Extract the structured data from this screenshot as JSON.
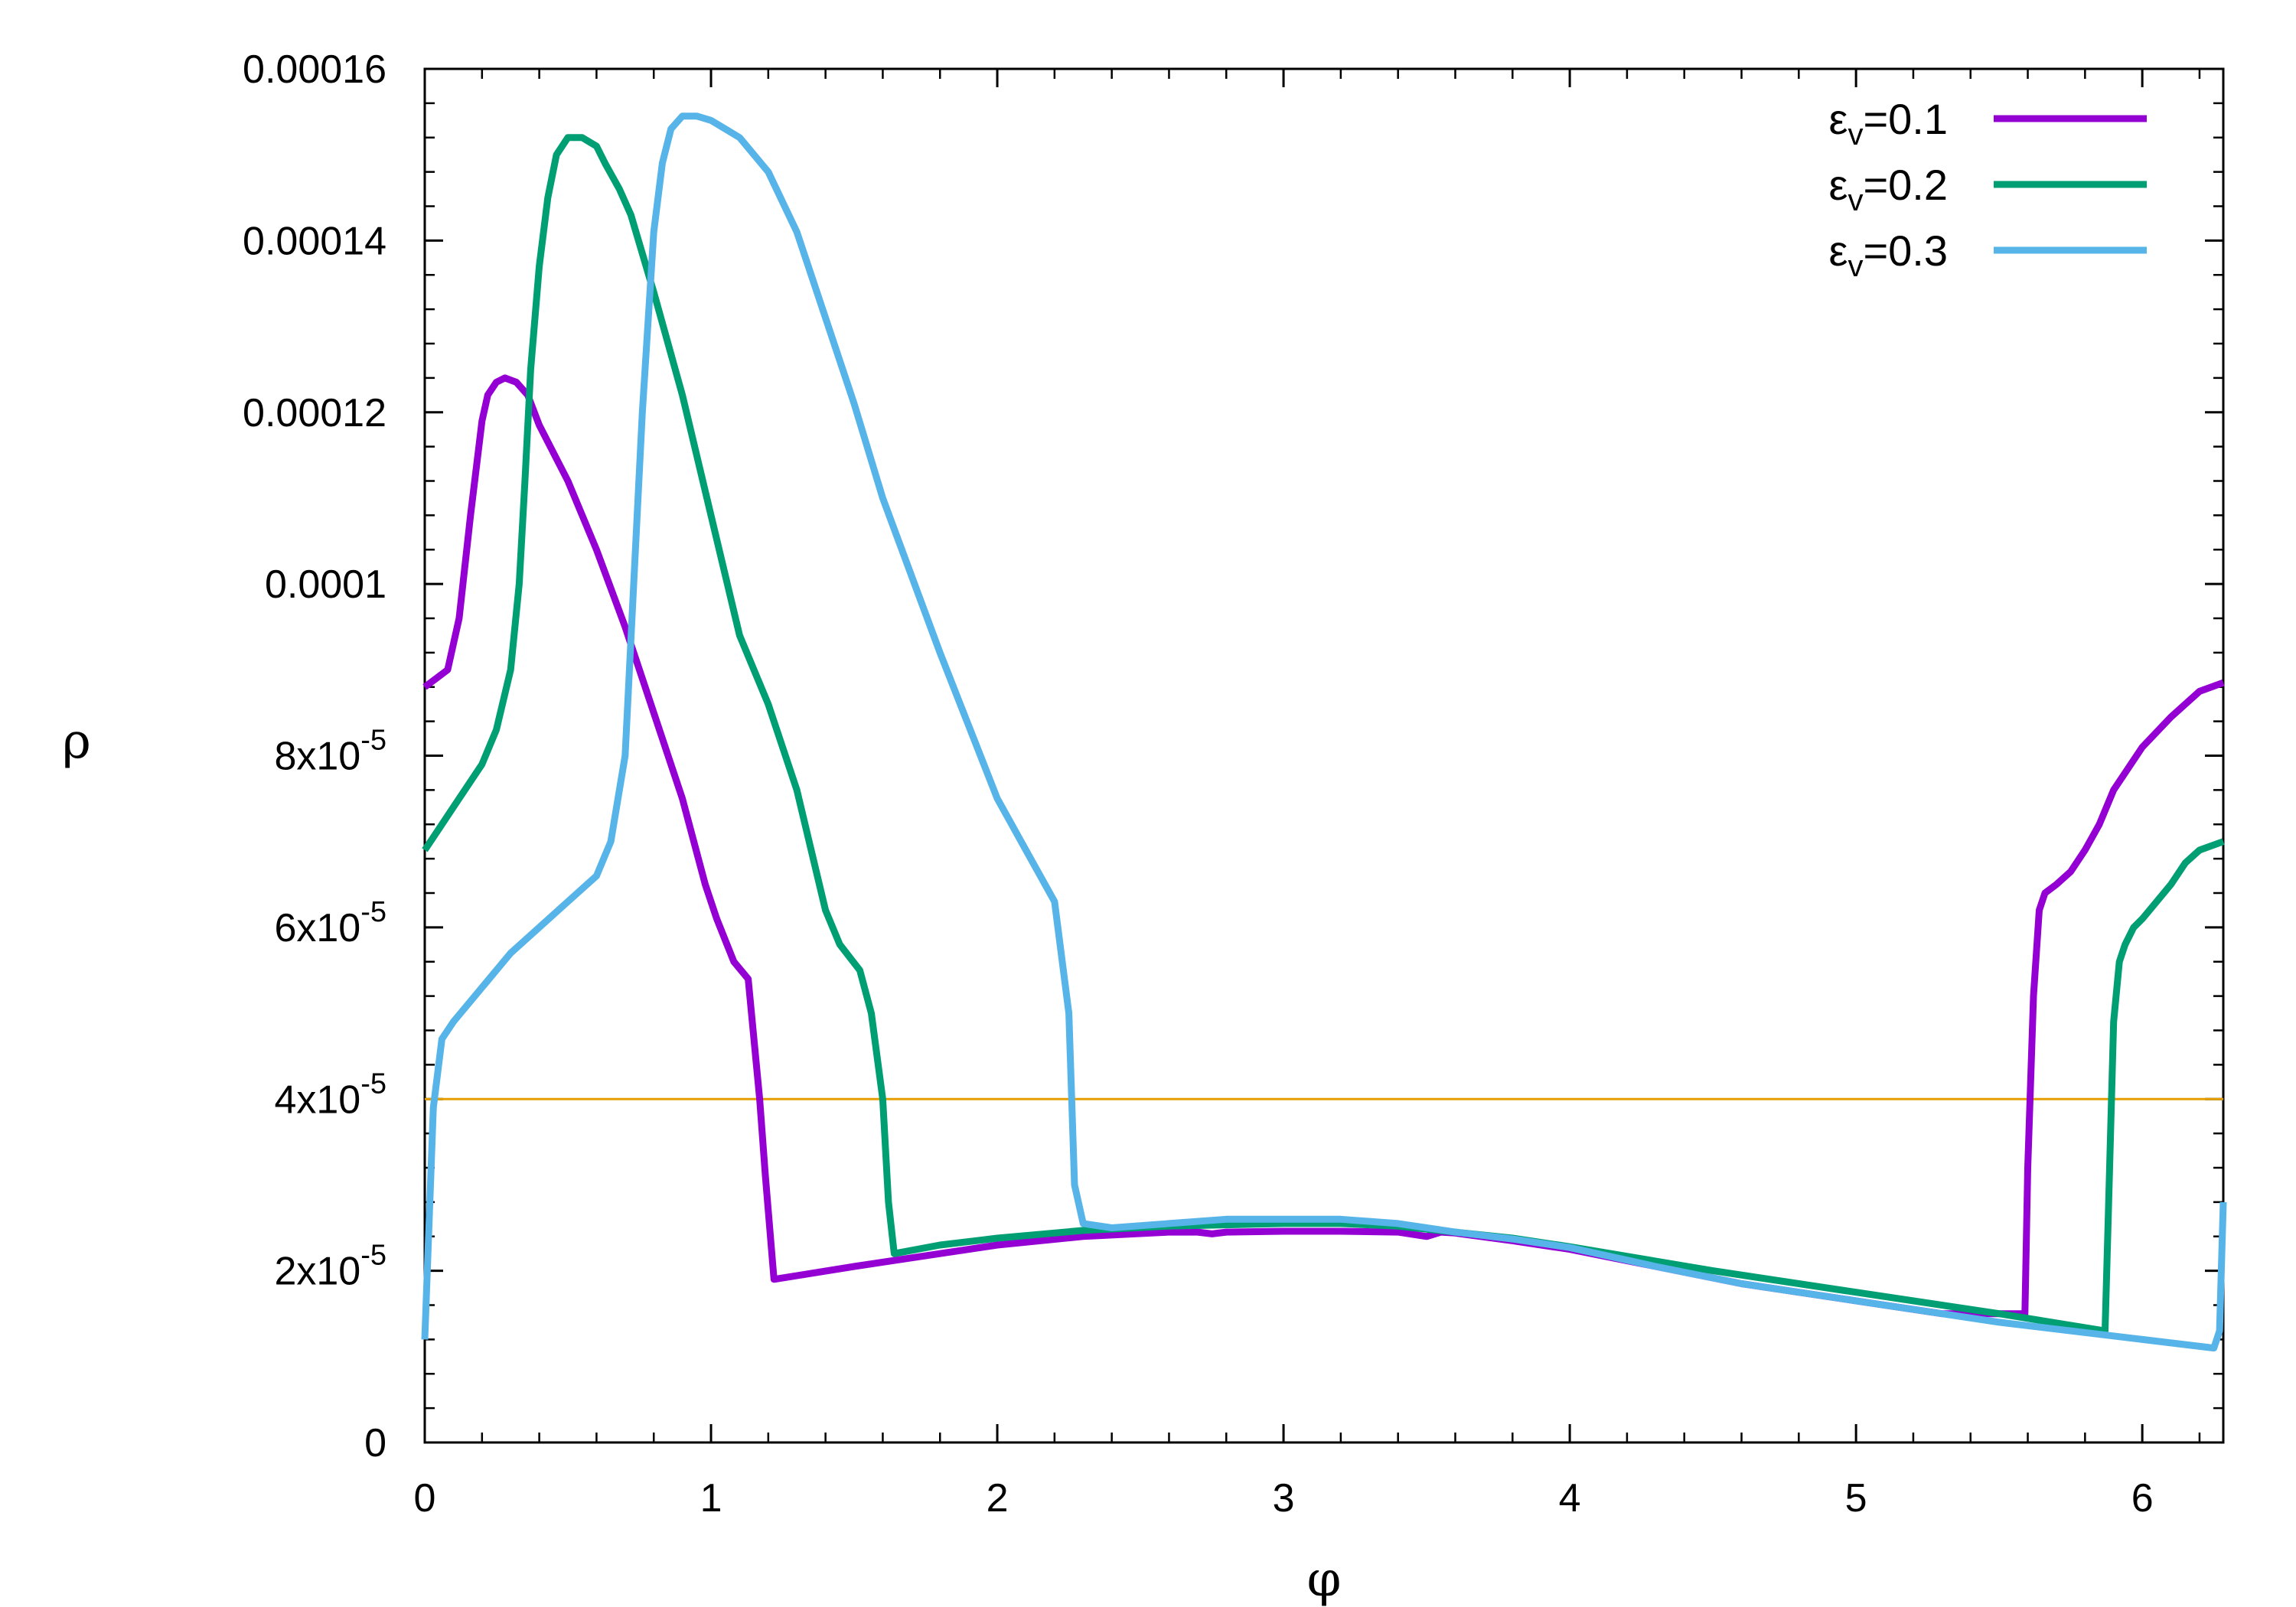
{
  "chart_data": {
    "type": "line",
    "xlabel": "φ",
    "ylabel": "ρ",
    "xlim": [
      0,
      6.283
    ],
    "ylim": [
      0,
      0.00016
    ],
    "grid": false,
    "legend_position": "top-right",
    "x_ticks": [
      {
        "value": 0,
        "label": "0"
      },
      {
        "value": 1,
        "label": "1"
      },
      {
        "value": 2,
        "label": "2"
      },
      {
        "value": 3,
        "label": "3"
      },
      {
        "value": 4,
        "label": "4"
      },
      {
        "value": 5,
        "label": "5"
      },
      {
        "value": 6,
        "label": "6"
      }
    ],
    "y_ticks": [
      {
        "value": 0,
        "label": "0",
        "mant": "",
        "exp": ""
      },
      {
        "value": 2e-05,
        "label": "2x10-5",
        "mant": "2x10",
        "exp": "-5"
      },
      {
        "value": 4e-05,
        "label": "4x10-5",
        "mant": "4x10",
        "exp": "-5"
      },
      {
        "value": 6e-05,
        "label": "6x10-5",
        "mant": "6x10",
        "exp": "-5"
      },
      {
        "value": 8e-05,
        "label": "8x10-5",
        "mant": "8x10",
        "exp": "-5"
      },
      {
        "value": 0.0001,
        "label": "0.0001",
        "mant": "",
        "exp": ""
      },
      {
        "value": 0.00012,
        "label": "0.00012",
        "mant": "",
        "exp": ""
      },
      {
        "value": 0.00014,
        "label": "0.00014",
        "mant": "",
        "exp": ""
      },
      {
        "value": 0.00016,
        "label": "0.00016",
        "mant": "",
        "exp": ""
      }
    ],
    "reference_line": {
      "y": 4e-05,
      "color": "#e69f00"
    },
    "series": [
      {
        "name": "εv=0.1",
        "label_main": "ε",
        "label_sub": "v",
        "label_rest": "=0.1",
        "color": "#9400d3",
        "x": [
          0,
          0.08,
          0.12,
          0.16,
          0.2,
          0.22,
          0.25,
          0.28,
          0.32,
          0.36,
          0.4,
          0.5,
          0.6,
          0.7,
          0.8,
          0.9,
          0.98,
          1.02,
          1.08,
          1.13,
          1.17,
          1.19,
          1.22,
          1.5,
          1.8,
          2.0,
          2.3,
          2.6,
          2.7,
          2.75,
          2.8,
          3.0,
          3.2,
          3.4,
          3.5,
          3.55,
          3.6,
          3.8,
          4.0,
          4.3,
          4.6,
          5.0,
          5.3,
          5.59,
          5.6,
          5.62,
          5.64,
          5.66,
          5.7,
          5.75,
          5.8,
          5.85,
          5.9,
          6.0,
          6.1,
          6.2,
          6.283
        ],
        "y": [
          8.8e-05,
          9e-05,
          9.6e-05,
          0.000108,
          0.000119,
          0.000122,
          0.0001235,
          0.000124,
          0.0001235,
          0.000122,
          0.0001185,
          0.000112,
          0.000104,
          9.5e-05,
          8.5e-05,
          7.5e-05,
          6.5e-05,
          6.1e-05,
          5.6e-05,
          5.4e-05,
          4e-05,
          3.1e-05,
          1.9e-05,
          2.05e-05,
          2.2e-05,
          2.3e-05,
          2.4e-05,
          2.45e-05,
          2.45e-05,
          2.43e-05,
          2.45e-05,
          2.46e-05,
          2.46e-05,
          2.45e-05,
          2.4e-05,
          2.45e-05,
          2.44e-05,
          2.35e-05,
          2.25e-05,
          2.05e-05,
          1.85e-05,
          1.65e-05,
          1.5e-05,
          1.5e-05,
          3.2e-05,
          5.2e-05,
          6.2e-05,
          6.4e-05,
          6.5e-05,
          6.65e-05,
          6.9e-05,
          7.2e-05,
          7.6e-05,
          8.1e-05,
          8.45e-05,
          8.75e-05,
          8.85e-05
        ]
      },
      {
        "name": "εv=0.2",
        "label_main": "ε",
        "label_sub": "v",
        "label_rest": "=0.2",
        "color": "#009e73",
        "x": [
          0,
          0.05,
          0.1,
          0.2,
          0.25,
          0.3,
          0.33,
          0.35,
          0.37,
          0.4,
          0.43,
          0.46,
          0.5,
          0.55,
          0.6,
          0.63,
          0.68,
          0.72,
          0.8,
          0.9,
          1.0,
          1.1,
          1.2,
          1.3,
          1.4,
          1.45,
          1.52,
          1.56,
          1.6,
          1.62,
          1.64,
          1.8,
          2.0,
          2.3,
          2.6,
          3.0,
          3.2,
          3.4,
          3.6,
          3.8,
          4.0,
          4.5,
          5.0,
          5.5,
          5.87,
          5.88,
          5.9,
          5.92,
          5.94,
          5.97,
          6.0,
          6.05,
          6.1,
          6.15,
          6.2,
          6.283
        ],
        "y": [
          6.9e-05,
          7.15e-05,
          7.4e-05,
          7.9e-05,
          8.3e-05,
          9e-05,
          0.0001,
          0.000112,
          0.000125,
          0.000137,
          0.000145,
          0.00015,
          0.000152,
          0.000152,
          0.000151,
          0.000149,
          0.000146,
          0.000143,
          0.000134,
          0.000122,
          0.000108,
          9.4e-05,
          8.6e-05,
          7.6e-05,
          6.2e-05,
          5.8e-05,
          5.5e-05,
          5e-05,
          4e-05,
          2.8e-05,
          2.2e-05,
          2.3e-05,
          2.38e-05,
          2.47e-05,
          2.52e-05,
          2.55e-05,
          2.55e-05,
          2.52e-05,
          2.45e-05,
          2.38e-05,
          2.28e-05,
          2e-05,
          1.75e-05,
          1.5e-05,
          1.3e-05,
          2.5e-05,
          4.9e-05,
          5.6e-05,
          5.8e-05,
          6e-05,
          6.1e-05,
          6.3e-05,
          6.5e-05,
          6.75e-05,
          6.9e-05,
          7e-05
        ]
      },
      {
        "name": "εv=0.3",
        "label_main": "ε",
        "label_sub": "v",
        "label_rest": "=0.3",
        "color": "#56b4e9",
        "x": [
          0,
          0.03,
          0.06,
          0.1,
          0.2,
          0.3,
          0.4,
          0.5,
          0.6,
          0.65,
          0.7,
          0.73,
          0.76,
          0.8,
          0.83,
          0.86,
          0.9,
          0.95,
          1.0,
          1.05,
          1.1,
          1.2,
          1.3,
          1.4,
          1.5,
          1.6,
          1.8,
          2.0,
          2.1,
          2.2,
          2.25,
          2.27,
          2.3,
          2.4,
          2.6,
          2.8,
          3.0,
          3.2,
          3.4,
          3.5,
          3.6,
          3.8,
          4.0,
          4.3,
          4.6,
          5.0,
          5.5,
          6.0,
          6.25,
          6.27,
          6.283
        ],
        "y": [
          1.2e-05,
          3.9e-05,
          4.7e-05,
          4.9e-05,
          5.3e-05,
          5.7e-05,
          6e-05,
          6.3e-05,
          6.6e-05,
          7e-05,
          8e-05,
          0.0001,
          0.00012,
          0.000141,
          0.000149,
          0.000153,
          0.0001545,
          0.0001545,
          0.000154,
          0.000153,
          0.000152,
          0.000148,
          0.000141,
          0.000131,
          0.000121,
          0.00011,
          9.2e-05,
          7.5e-05,
          6.9e-05,
          6.3e-05,
          5e-05,
          3e-05,
          2.55e-05,
          2.5e-05,
          2.55e-05,
          2.6e-05,
          2.6e-05,
          2.6e-05,
          2.55e-05,
          2.5e-05,
          2.45e-05,
          2.37e-05,
          2.27e-05,
          2.05e-05,
          1.85e-05,
          1.65e-05,
          1.4e-05,
          1.2e-05,
          1.1e-05,
          1.3e-05,
          2.8e-05
        ]
      }
    ]
  }
}
